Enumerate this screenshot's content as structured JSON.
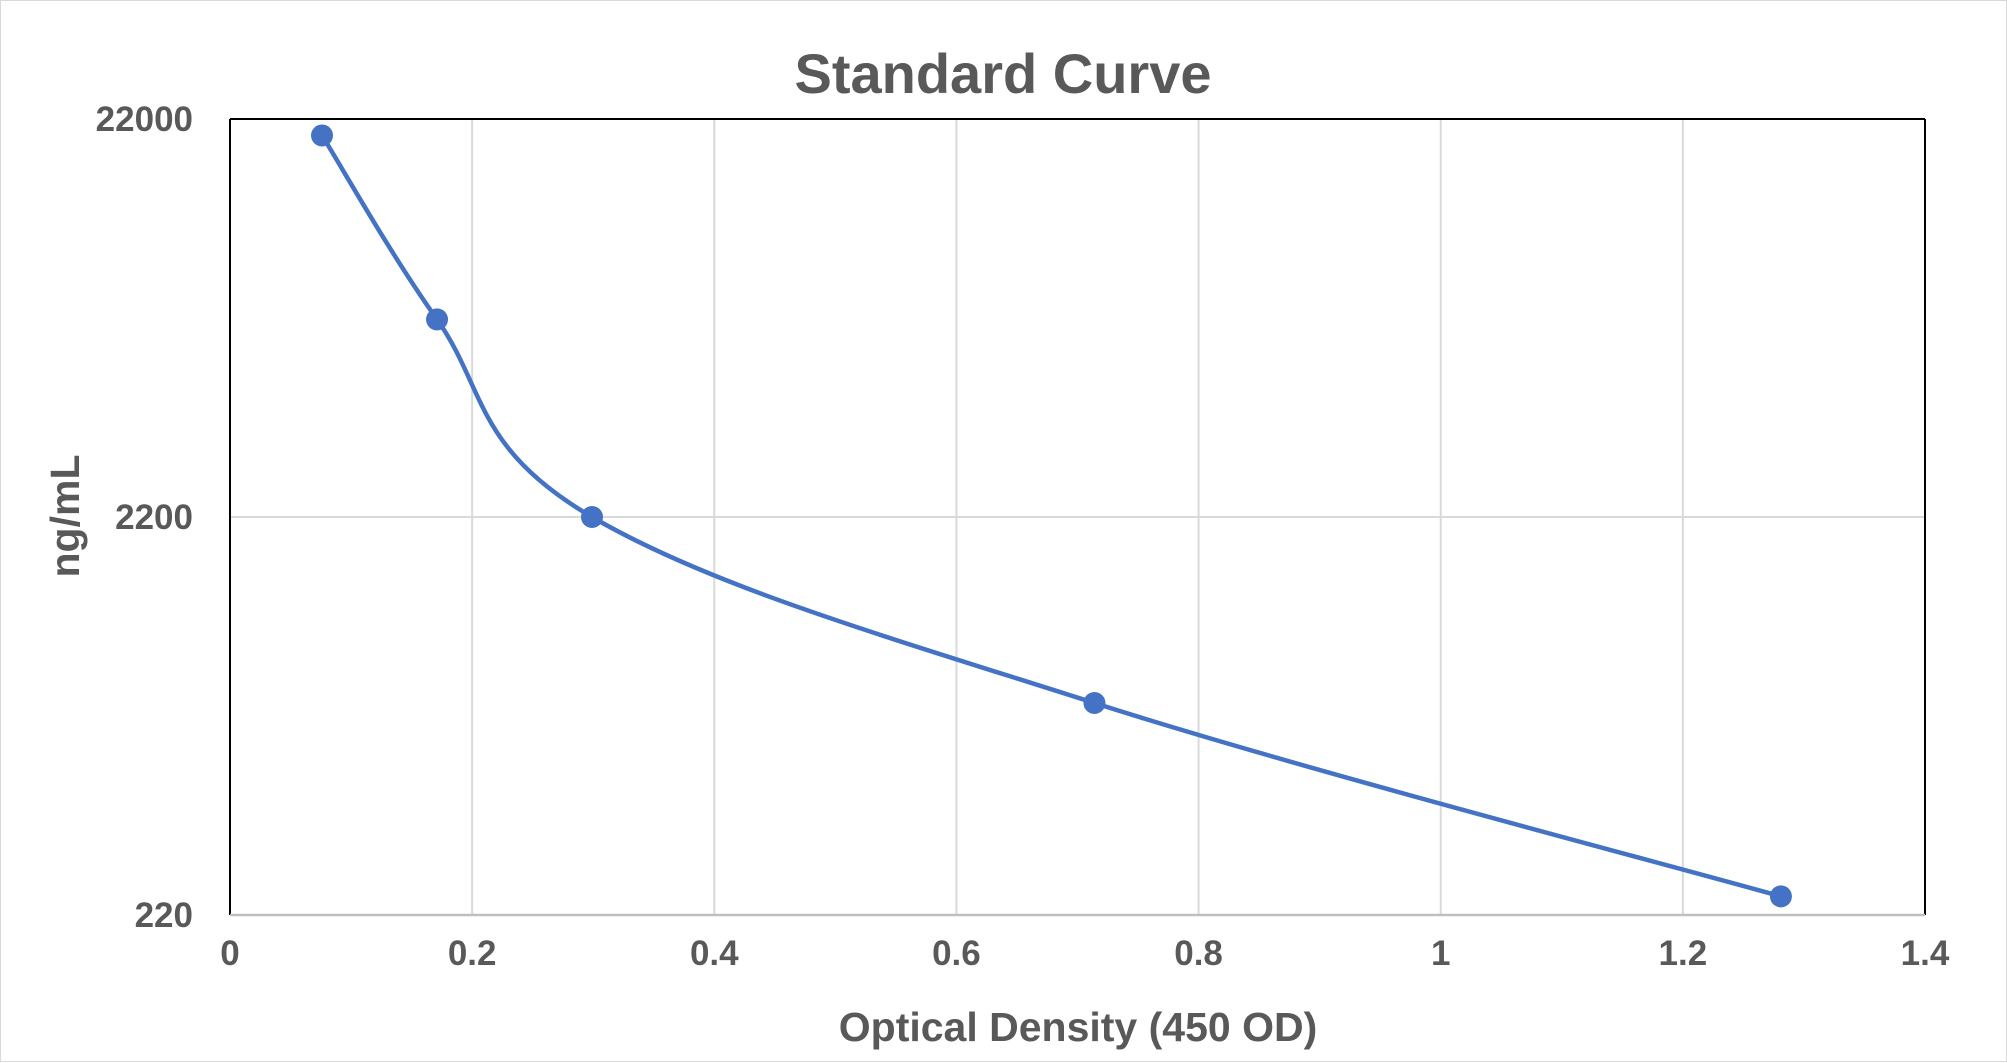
{
  "chart_data": {
    "type": "scatter",
    "title": "Standard Curve",
    "xlabel": "Optical Density (450 OD)",
    "ylabel": "ng/mL",
    "xlim": [
      0,
      1.4
    ],
    "ylim": [
      220,
      22000
    ],
    "y_scale": "log",
    "x_ticks": [
      0,
      0.2,
      0.4,
      0.6,
      0.8,
      1,
      1.2,
      1.4
    ],
    "x_tick_labels": [
      "0",
      "0.2",
      "0.4",
      "0.6",
      "0.8",
      "1",
      "1.2",
      "1.4"
    ],
    "y_ticks": [
      220,
      2200,
      22000
    ],
    "y_tick_labels": [
      "220",
      "2200",
      "22000"
    ],
    "grid": true,
    "smoothed_line": true,
    "legend": "none",
    "series": [
      {
        "x": [
          0.076,
          0.171,
          0.299,
          0.714,
          1.281
        ],
        "y": [
          20000,
          6900,
          2200,
          750,
          245
        ]
      }
    ],
    "colors": {
      "series": "#4472c4",
      "grid": "#d9d9d9",
      "axis": "#000000",
      "text": "#595959"
    }
  }
}
